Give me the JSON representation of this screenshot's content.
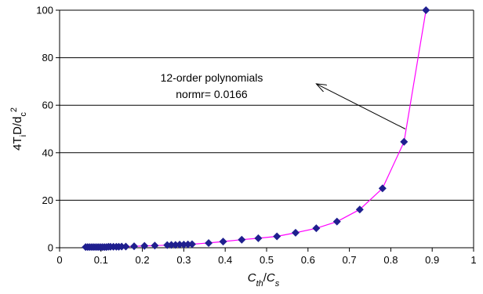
{
  "chart_data": {
    "type": "scatter",
    "title": "",
    "xlabel_parts": [
      {
        "text": "C",
        "style": "italic"
      },
      {
        "text": "th",
        "style": "italic-sub"
      },
      {
        "text": "/",
        "style": "normal"
      },
      {
        "text": "C",
        "style": "italic"
      },
      {
        "text": "s",
        "style": "italic-sub"
      }
    ],
    "ylabel_parts": [
      {
        "text": "4T",
        "style": "normal"
      },
      {
        "text": "i",
        "style": "sub"
      },
      {
        "text": "D/d",
        "style": "normal"
      },
      {
        "text": "c",
        "style": "sub"
      },
      {
        "text": "2",
        "style": "sup"
      }
    ],
    "xlim": [
      0,
      1
    ],
    "ylim": [
      0,
      100
    ],
    "x_ticks": [
      "0",
      "0.1",
      "0.2",
      "0.3",
      "0.4",
      "0.5",
      "0.6",
      "0.7",
      "0.8",
      "0.9",
      "1"
    ],
    "y_ticks": [
      "0",
      "20",
      "40",
      "60",
      "80",
      "100"
    ],
    "grid": "horizontal",
    "series": [
      {
        "marker": "diamond",
        "marker_color": "#1f1f8f",
        "line_color": "#ff00ff",
        "x": [
          0.063,
          0.068,
          0.073,
          0.078,
          0.083,
          0.088,
          0.093,
          0.098,
          0.103,
          0.108,
          0.113,
          0.118,
          0.123,
          0.13,
          0.137,
          0.143,
          0.15,
          0.16,
          0.18,
          0.205,
          0.23,
          0.26,
          0.27,
          0.28,
          0.29,
          0.3,
          0.31,
          0.32,
          0.36,
          0.395,
          0.44,
          0.48,
          0.525,
          0.57,
          0.62,
          0.67,
          0.725,
          0.78,
          0.832,
          0.885
        ],
        "y": [
          0.3,
          0.3,
          0.3,
          0.3,
          0.3,
          0.3,
          0.3,
          0.3,
          0.3,
          0.3,
          0.3,
          0.4,
          0.4,
          0.4,
          0.4,
          0.4,
          0.5,
          0.5,
          0.6,
          0.8,
          0.9,
          1.1,
          1.2,
          1.2,
          1.3,
          1.3,
          1.4,
          1.5,
          2.0,
          2.6,
          3.4,
          4.0,
          4.8,
          6.3,
          8.2,
          11.0,
          16.1,
          25.0,
          44.6,
          100.0
        ]
      }
    ],
    "annotation": {
      "lines": [
        "12-order polynomials",
        "normr= 0.0166"
      ],
      "arrow_from": [
        0.835,
        50
      ],
      "arrow_to": [
        0.62,
        69
      ]
    }
  }
}
